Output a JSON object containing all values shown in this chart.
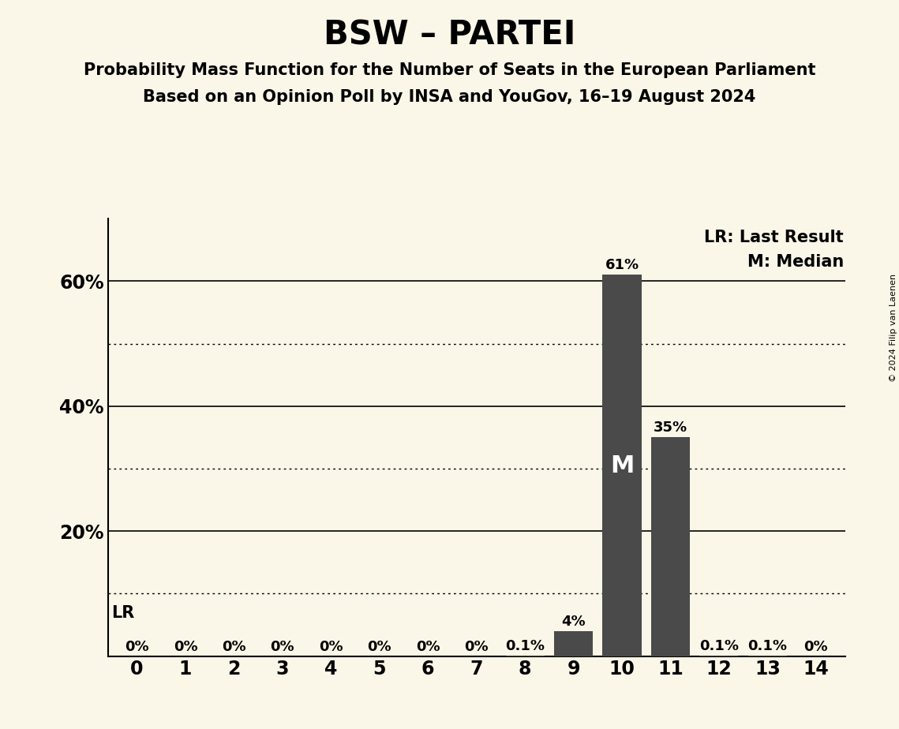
{
  "title": "BSW – PARTEI",
  "subtitle1": "Probability Mass Function for the Number of Seats in the European Parliament",
  "subtitle2": "Based on an Opinion Poll by INSA and YouGov, 16–19 August 2024",
  "x_values": [
    0,
    1,
    2,
    3,
    4,
    5,
    6,
    7,
    8,
    9,
    10,
    11,
    12,
    13,
    14
  ],
  "y_values": [
    0.0,
    0.0,
    0.0,
    0.0,
    0.0,
    0.0,
    0.0,
    0.0,
    0.001,
    0.04,
    0.61,
    0.35,
    0.001,
    0.001,
    0.0
  ],
  "y_labels": [
    "0%",
    "0%",
    "0%",
    "0%",
    "0%",
    "0%",
    "0%",
    "0%",
    "0.1%",
    "4%",
    "61%",
    "35%",
    "0.1%",
    "0.1%",
    "0%"
  ],
  "bar_color": "#4a4a4a",
  "background_color": "#faf6e8",
  "median_seat": 10,
  "lr_seat": 9,
  "median_label": "M",
  "lr_label": "LR",
  "legend_lr": "LR: Last Result",
  "legend_m": "M: Median",
  "copyright_text": "© 2024 Filip van Laenen",
  "major_yticks": [
    0.0,
    0.2,
    0.4,
    0.6
  ],
  "major_ytick_labels": [
    "",
    "20%",
    "40%",
    "60%"
  ],
  "minor_dotted": [
    0.1,
    0.3,
    0.5
  ],
  "ylim": [
    0,
    0.7
  ],
  "xlim": [
    -0.6,
    14.6
  ]
}
